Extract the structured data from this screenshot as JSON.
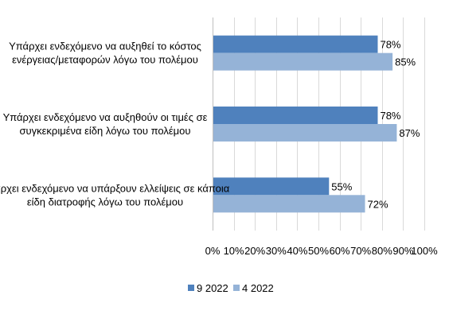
{
  "chart_data": {
    "type": "bar",
    "orientation": "horizontal",
    "categories": [
      [
        "Υπάρχει ενδεχόμενο να αυξηθεί το κόστος",
        "ενέργειας/μεταφορών λόγω του πολέμου"
      ],
      [
        "Υπάρχει ενδεχόμενο να αυξηθούν οι τιμές σε",
        "συγκεκριμένα είδη λόγω του πολέμου"
      ],
      [
        "Υπάρχει ενδεχόμενο να υπάρξουν ελλείψεις σε κάποια",
        "είδη διατροφής λόγω του πολέμου"
      ]
    ],
    "series": [
      {
        "name": "9 2022",
        "values": [
          78,
          78,
          55
        ],
        "color": "#4f81bd"
      },
      {
        "name": "4 2022",
        "values": [
          85,
          87,
          72
        ],
        "color": "#95b3d7"
      }
    ],
    "data_labels": [
      [
        "78%",
        "78%",
        "55%"
      ],
      [
        "85%",
        "87%",
        "72%"
      ]
    ],
    "xlim": [
      0,
      100
    ],
    "xticks": [
      "0%",
      "10%",
      "20%",
      "30%",
      "40%",
      "50%",
      "60%",
      "70%",
      "80%",
      "90%",
      "100%"
    ],
    "grid": true,
    "legend_position": "bottom",
    "title": "",
    "xlabel": "",
    "ylabel": ""
  }
}
